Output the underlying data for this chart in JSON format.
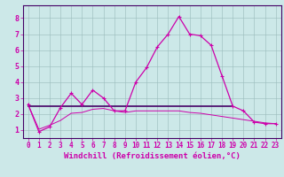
{
  "xlabel": "Windchill (Refroidissement éolien,°C)",
  "background_color": "#cce8e8",
  "grid_color": "#aacccc",
  "line_color_main": "#cc00aa",
  "line_color_dark": "#440066",
  "xlim": [
    -0.5,
    23.5
  ],
  "ylim": [
    0.5,
    8.8
  ],
  "xticks": [
    0,
    1,
    2,
    3,
    4,
    5,
    6,
    7,
    8,
    9,
    10,
    11,
    12,
    13,
    14,
    15,
    16,
    17,
    18,
    19,
    20,
    21,
    22,
    23
  ],
  "yticks": [
    1,
    2,
    3,
    4,
    5,
    6,
    7,
    8
  ],
  "series1_x": [
    0,
    1,
    2,
    3,
    4,
    5,
    6,
    7,
    8,
    9,
    10,
    11,
    12,
    13,
    14,
    15,
    16,
    17,
    18,
    19,
    20,
    21,
    22,
    23
  ],
  "series1_y": [
    2.6,
    0.9,
    1.2,
    2.4,
    3.3,
    2.6,
    3.5,
    3.0,
    2.2,
    2.2,
    4.0,
    4.9,
    6.2,
    7.0,
    8.1,
    7.0,
    6.9,
    6.3,
    4.4,
    2.5,
    2.2,
    1.5,
    1.4,
    1.4
  ],
  "series2_x": [
    0,
    19
  ],
  "series2_y": [
    2.5,
    2.5
  ],
  "series3_x": [
    0,
    1,
    2,
    3,
    4,
    5,
    6,
    7,
    8,
    9,
    10,
    11,
    12,
    13,
    14,
    15,
    16,
    17,
    18,
    19,
    20,
    21,
    22,
    23
  ],
  "series3_y": [
    2.6,
    1.05,
    1.3,
    1.6,
    2.05,
    2.1,
    2.3,
    2.35,
    2.2,
    2.1,
    2.2,
    2.2,
    2.2,
    2.2,
    2.2,
    2.1,
    2.05,
    1.95,
    1.85,
    1.75,
    1.65,
    1.55,
    1.45,
    1.4
  ],
  "xlabel_fontsize": 6.5,
  "tick_fontsize": 5.5
}
